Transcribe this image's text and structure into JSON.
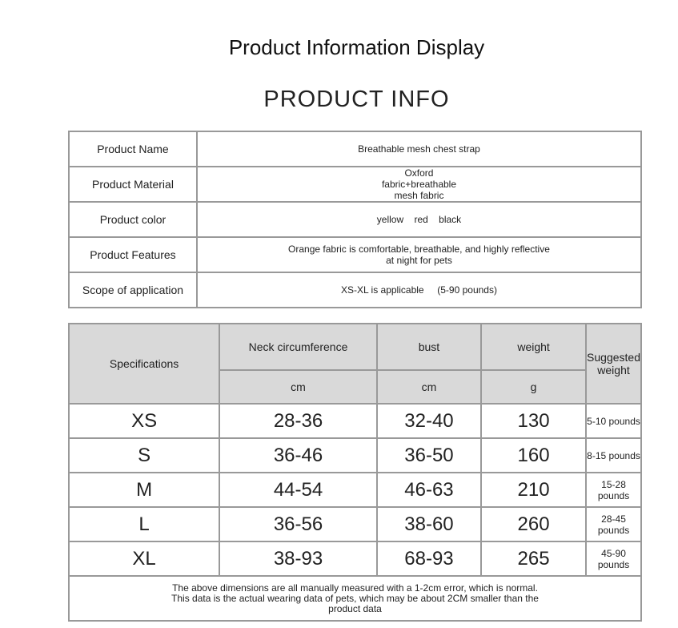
{
  "title": "Product Information Display",
  "subtitle": "PRODUCT INFO",
  "info": [
    {
      "label": "Product Name",
      "value": "Breathable mesh chest strap"
    },
    {
      "label": "Product Material",
      "value": "Oxford fabric+breathable mesh fabric"
    },
    {
      "label": "Product color",
      "value": "yellow    red    black"
    },
    {
      "label": "Product Features",
      "value": "Orange fabric is comfortable, breathable, and highly reflective at night for pets"
    },
    {
      "label": "Scope of application",
      "value": "XS-XL is applicable     (5-90 pounds)"
    }
  ],
  "size_table": {
    "headers": {
      "spec": "Specifications",
      "neck": "Neck circumference",
      "bust": "bust",
      "weight": "weight",
      "suggested": "Suggested weight",
      "neck_unit": "cm",
      "bust_unit": "cm",
      "weight_unit": "g"
    },
    "rows": [
      {
        "size": "XS",
        "neck": "28-36",
        "bust": "32-40",
        "weight": "130",
        "suggested": "5-10 pounds"
      },
      {
        "size": "S",
        "neck": "36-46",
        "bust": "36-50",
        "weight": "160",
        "suggested": "8-15 pounds"
      },
      {
        "size": "M",
        "neck": "44-54",
        "bust": "46-63",
        "weight": "210",
        "suggested": "15-28 pounds"
      },
      {
        "size": "L",
        "neck": "36-56",
        "bust": "38-60",
        "weight": "260",
        "suggested": "28-45 pounds"
      },
      {
        "size": "XL",
        "neck": "38-93",
        "bust": "68-93",
        "weight": "265",
        "suggested": "45-90 pounds"
      }
    ],
    "footnote": "The above dimensions are all manually measured with a 1-2cm error, which is normal. This data is the actual wearing data of pets, which may be about 2CM smaller than the product data"
  }
}
